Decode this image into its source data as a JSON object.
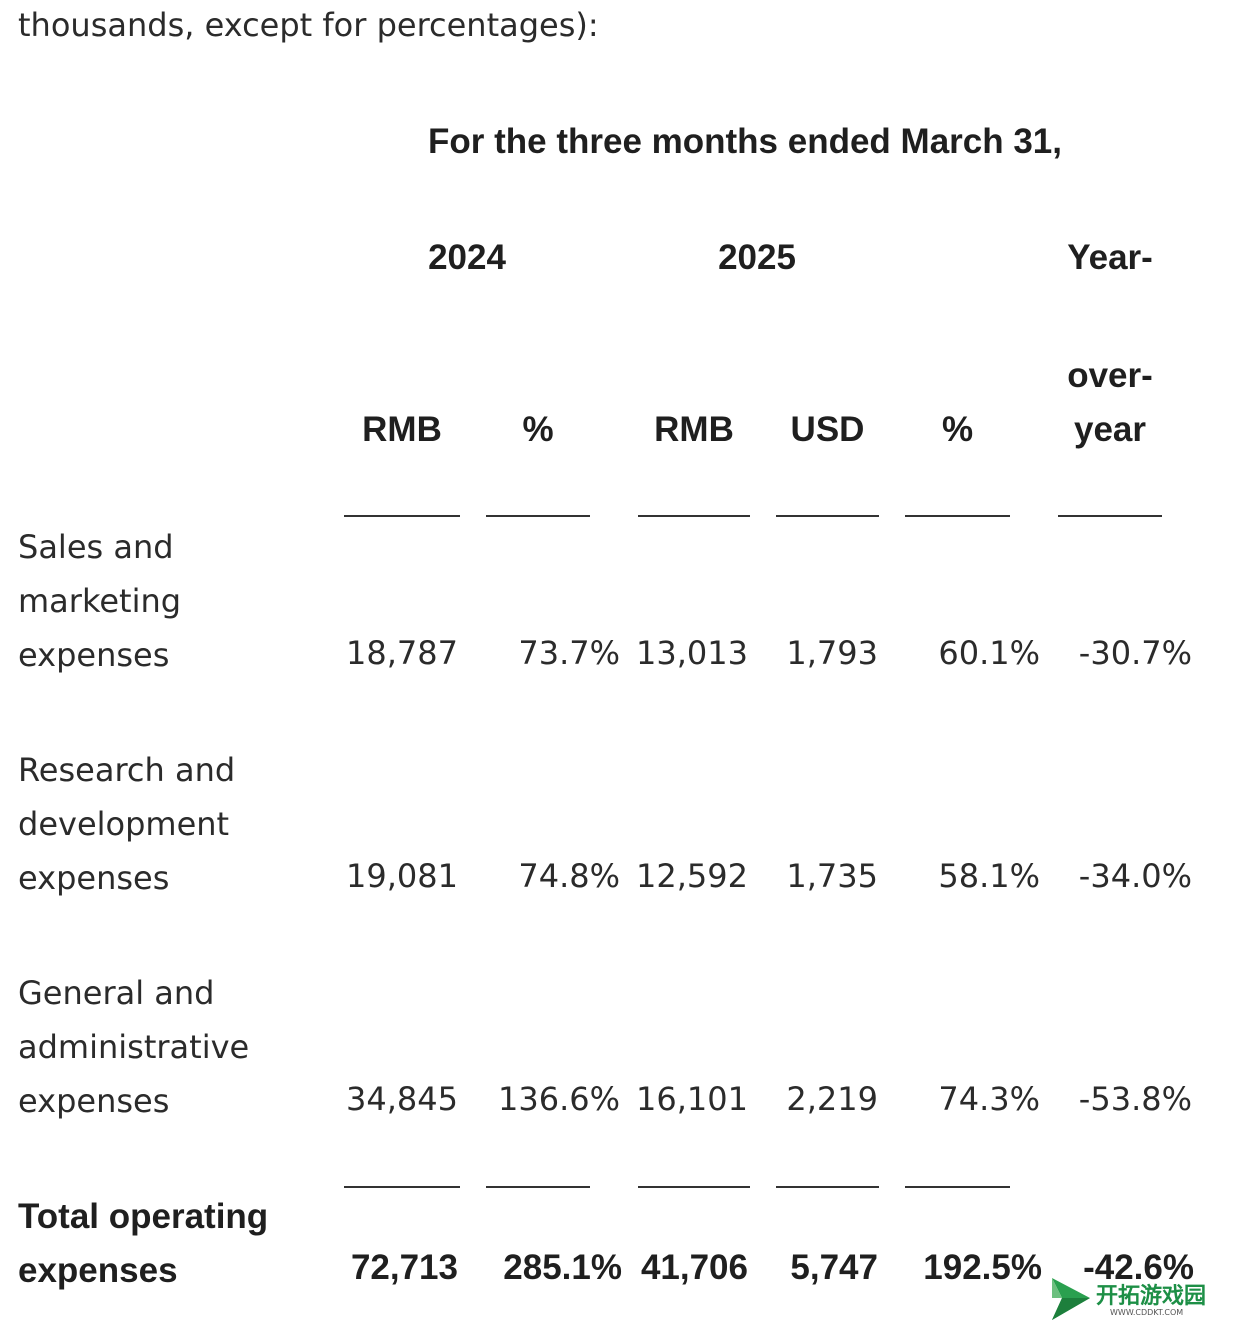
{
  "intro_text": "thousands, except for percentages):",
  "header": {
    "period": "For the three months ended March 31,",
    "year_2024": "2024",
    "year_2025": "2025",
    "yoy_line1": "Year-",
    "yoy_line2": "over-",
    "yoy_line3": "year",
    "columns": [
      "RMB",
      "%",
      "RMB",
      "USD",
      "%"
    ]
  },
  "rows": [
    {
      "label_lines": [
        "Sales and",
        "marketing",
        "expenses"
      ],
      "values": [
        "18,787",
        "73.7%",
        "13,013",
        "1,793",
        "60.1%",
        "-30.7%"
      ]
    },
    {
      "label_lines": [
        "Research and",
        "development",
        "expenses"
      ],
      "values": [
        "19,081",
        "74.8%",
        "12,592",
        "1,735",
        "58.1%",
        "-34.0%"
      ]
    },
    {
      "label_lines": [
        "General and",
        "administrative",
        "expenses"
      ],
      "values": [
        "34,845",
        "136.6%",
        "16,101",
        "2,219",
        "74.3%",
        "-53.8%"
      ]
    }
  ],
  "total": {
    "label_lines": [
      "Total operating",
      "expenses"
    ],
    "values": [
      "72,713",
      "285.1%",
      "41,706",
      "5,747",
      "192.5%",
      "-42.6%"
    ]
  },
  "watermark": {
    "text": "开拓游戏园",
    "url": "WWW.CDDKT.COM"
  },
  "colors": {
    "text": "#222222",
    "rule": "#333333",
    "watermark": "#1d8f46"
  },
  "icons": [
    "logo-icon"
  ]
}
